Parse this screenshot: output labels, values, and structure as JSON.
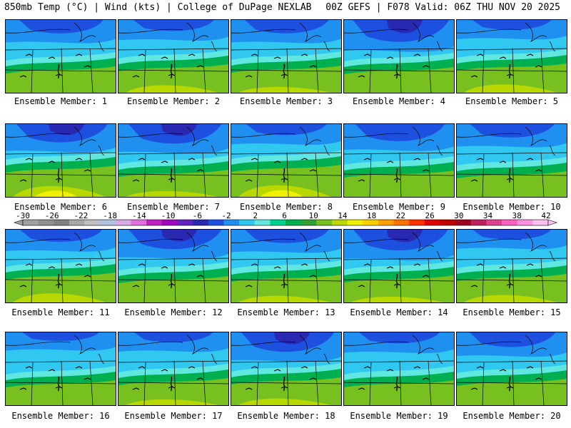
{
  "header": {
    "left": "850mb Temp (°C) | Wind (kts) | College of DuPage NEXLAB",
    "right": "00Z GEFS | F078 Valid: 06Z THU NOV 20 2025"
  },
  "caption_prefix": "Ensemble Member:",
  "members": [
    {
      "number": "1",
      "coldness": 0.55,
      "warmth": 0.3
    },
    {
      "number": "2",
      "coldness": 0.45,
      "warmth": 0.45
    },
    {
      "number": "3",
      "coldness": 0.55,
      "warmth": 0.35
    },
    {
      "number": "4",
      "coldness": 0.9,
      "warmth": 0.25
    },
    {
      "number": "5",
      "coldness": 0.4,
      "warmth": 0.5
    },
    {
      "number": "6",
      "coldness": 0.75,
      "warmth": 0.65
    },
    {
      "number": "7",
      "coldness": 0.8,
      "warmth": 0.35
    },
    {
      "number": "8",
      "coldness": 0.45,
      "warmth": 0.7
    },
    {
      "number": "9",
      "coldness": 0.7,
      "warmth": 0.3
    },
    {
      "number": "10",
      "coldness": 0.55,
      "warmth": 0.25
    },
    {
      "number": "11",
      "coldness": 0.5,
      "warmth": 0.55
    },
    {
      "number": "12",
      "coldness": 0.8,
      "warmth": 0.3
    },
    {
      "number": "13",
      "coldness": 0.55,
      "warmth": 0.4
    },
    {
      "number": "14",
      "coldness": 0.85,
      "warmth": 0.35
    },
    {
      "number": "15",
      "coldness": 0.4,
      "warmth": 0.45
    },
    {
      "number": "16",
      "coldness": 0.35,
      "warmth": 0.2
    },
    {
      "number": "17",
      "coldness": 0.4,
      "warmth": 0.35
    },
    {
      "number": "18",
      "coldness": 0.8,
      "warmth": 0.4
    },
    {
      "number": "19",
      "coldness": 0.45,
      "warmth": 0.2
    },
    {
      "number": "20",
      "coldness": 0.6,
      "warmth": 0.3
    }
  ],
  "colorbar": {
    "labels": [
      "-30",
      "-26",
      "-22",
      "-18",
      "-14",
      "-10",
      "-6",
      "-2",
      "2",
      "6",
      "10",
      "14",
      "18",
      "22",
      "26",
      "30",
      "34",
      "38",
      "42"
    ],
    "colors": [
      "#a0a0a0",
      "#909090",
      "#808080",
      "#a8a8a8",
      "#c0c0c0",
      "#b0c4de",
      "#d8a8e8",
      "#e070e0",
      "#c020c0",
      "#a000c0",
      "#6020c0",
      "#2828b0",
      "#1e50e0",
      "#2090f0",
      "#30c8f0",
      "#60e8e0",
      "#00d090",
      "#00b050",
      "#30a030",
      "#78c020",
      "#b8d800",
      "#f0f000",
      "#ffd000",
      "#ffa000",
      "#ff7000",
      "#ff3000",
      "#e00000",
      "#c00000",
      "#a00020",
      "#c02060",
      "#e04090",
      "#ff60c0",
      "#ff90e0",
      "#ffc0f0"
    ]
  }
}
